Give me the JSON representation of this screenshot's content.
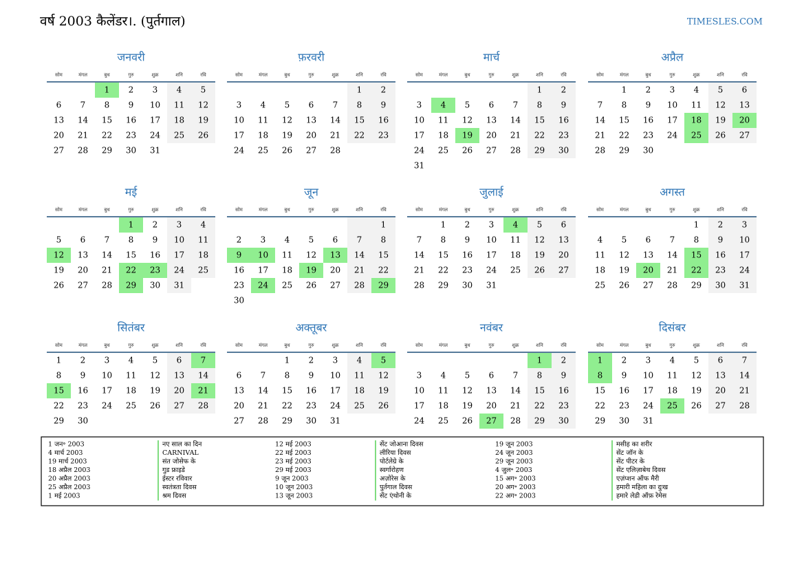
{
  "header": {
    "title": "वर्ष 2003 कैलेंडर।. (पुर्तगाल)",
    "site": "TIMESLES.COM"
  },
  "weekdays": [
    "सोम",
    "मंगल",
    "बुध",
    "गुरु",
    "शुक्र",
    "शनि",
    "रवि"
  ],
  "months": [
    {
      "name": "जनवरी",
      "weeks": [
        [
          null,
          null,
          1,
          2,
          3,
          4,
          5
        ],
        [
          6,
          7,
          8,
          9,
          10,
          11,
          12
        ],
        [
          13,
          14,
          15,
          16,
          17,
          18,
          19
        ],
        [
          20,
          21,
          22,
          23,
          24,
          25,
          26
        ],
        [
          27,
          28,
          29,
          30,
          31
        ]
      ],
      "holidays": [
        1
      ]
    },
    {
      "name": "फ़रवरी",
      "weeks": [
        [
          null,
          null,
          null,
          null,
          null,
          1,
          2
        ],
        [
          3,
          4,
          5,
          6,
          7,
          8,
          9
        ],
        [
          10,
          11,
          12,
          13,
          14,
          15,
          16
        ],
        [
          17,
          18,
          19,
          20,
          21,
          22,
          23
        ],
        [
          24,
          25,
          26,
          27,
          28
        ]
      ],
      "holidays": []
    },
    {
      "name": "मार्च",
      "weeks": [
        [
          null,
          null,
          null,
          null,
          null,
          1,
          2
        ],
        [
          3,
          4,
          5,
          6,
          7,
          8,
          9
        ],
        [
          10,
          11,
          12,
          13,
          14,
          15,
          16
        ],
        [
          17,
          18,
          19,
          20,
          21,
          22,
          23
        ],
        [
          24,
          25,
          26,
          27,
          28,
          29,
          30
        ],
        [
          31
        ]
      ],
      "holidays": [
        4,
        19
      ]
    },
    {
      "name": "अप्रैल",
      "weeks": [
        [
          null,
          1,
          2,
          3,
          4,
          5,
          6
        ],
        [
          7,
          8,
          9,
          10,
          11,
          12,
          13
        ],
        [
          14,
          15,
          16,
          17,
          18,
          19,
          20
        ],
        [
          21,
          22,
          23,
          24,
          25,
          26,
          27
        ],
        [
          28,
          29,
          30
        ]
      ],
      "holidays": [
        18,
        20,
        25
      ]
    },
    {
      "name": "मई",
      "weeks": [
        [
          null,
          null,
          null,
          1,
          2,
          3,
          4
        ],
        [
          5,
          6,
          7,
          8,
          9,
          10,
          11
        ],
        [
          12,
          13,
          14,
          15,
          16,
          17,
          18
        ],
        [
          19,
          20,
          21,
          22,
          23,
          24,
          25
        ],
        [
          26,
          27,
          28,
          29,
          30,
          31
        ]
      ],
      "holidays": [
        1,
        12,
        22,
        23,
        29
      ]
    },
    {
      "name": "जून",
      "weeks": [
        [
          null,
          null,
          null,
          null,
          null,
          null,
          1
        ],
        [
          2,
          3,
          4,
          5,
          6,
          7,
          8
        ],
        [
          9,
          10,
          11,
          12,
          13,
          14,
          15
        ],
        [
          16,
          17,
          18,
          19,
          20,
          21,
          22
        ],
        [
          23,
          24,
          25,
          26,
          27,
          28,
          29
        ],
        [
          30
        ]
      ],
      "holidays": [
        9,
        10,
        13,
        19,
        24,
        29
      ]
    },
    {
      "name": "जुलाई",
      "weeks": [
        [
          null,
          1,
          2,
          3,
          4,
          5,
          6
        ],
        [
          7,
          8,
          9,
          10,
          11,
          12,
          13
        ],
        [
          14,
          15,
          16,
          17,
          18,
          19,
          20
        ],
        [
          21,
          22,
          23,
          24,
          25,
          26,
          27
        ],
        [
          28,
          29,
          30,
          31
        ]
      ],
      "holidays": [
        4
      ]
    },
    {
      "name": "अगस्त",
      "weeks": [
        [
          null,
          null,
          null,
          null,
          1,
          2,
          3
        ],
        [
          4,
          5,
          6,
          7,
          8,
          9,
          10
        ],
        [
          11,
          12,
          13,
          14,
          15,
          16,
          17
        ],
        [
          18,
          19,
          20,
          21,
          22,
          23,
          24
        ],
        [
          25,
          26,
          27,
          28,
          29,
          30,
          31
        ]
      ],
      "holidays": [
        15,
        20,
        22
      ]
    },
    {
      "name": "सितंबर",
      "weeks": [
        [
          1,
          2,
          3,
          4,
          5,
          6,
          7
        ],
        [
          8,
          9,
          10,
          11,
          12,
          13,
          14
        ],
        [
          15,
          16,
          17,
          18,
          19,
          20,
          21
        ],
        [
          22,
          23,
          24,
          25,
          26,
          27,
          28
        ],
        [
          29,
          30
        ]
      ],
      "holidays": [
        7,
        15,
        21
      ]
    },
    {
      "name": "अक्तूबर",
      "weeks": [
        [
          null,
          null,
          1,
          2,
          3,
          4,
          5
        ],
        [
          6,
          7,
          8,
          9,
          10,
          11,
          12
        ],
        [
          13,
          14,
          15,
          16,
          17,
          18,
          19
        ],
        [
          20,
          21,
          22,
          23,
          24,
          25,
          26
        ],
        [
          27,
          28,
          29,
          30,
          31
        ]
      ],
      "holidays": [
        5
      ]
    },
    {
      "name": "नवंबर",
      "weeks": [
        [
          null,
          null,
          null,
          null,
          null,
          1,
          2
        ],
        [
          3,
          4,
          5,
          6,
          7,
          8,
          9
        ],
        [
          10,
          11,
          12,
          13,
          14,
          15,
          16
        ],
        [
          17,
          18,
          19,
          20,
          21,
          22,
          23
        ],
        [
          24,
          25,
          26,
          27,
          28,
          29,
          30
        ]
      ],
      "holidays": [
        1,
        27
      ]
    },
    {
      "name": "दिसंबर",
      "weeks": [
        [
          1,
          2,
          3,
          4,
          5,
          6,
          7
        ],
        [
          8,
          9,
          10,
          11,
          12,
          13,
          14
        ],
        [
          15,
          16,
          17,
          18,
          19,
          20,
          21
        ],
        [
          22,
          23,
          24,
          25,
          26,
          27,
          28
        ],
        [
          29,
          30,
          31
        ]
      ],
      "holidays": [
        1,
        8,
        25
      ]
    }
  ],
  "holiday_list": [
    {
      "date": "1 जन॰ 2003",
      "name": "नए साल का दिन"
    },
    {
      "date": "4 मार्च 2003",
      "name": "CARNIVAL"
    },
    {
      "date": "19 मार्च 2003",
      "name": "संत जोसेफ के"
    },
    {
      "date": "18 अप्रैल 2003",
      "name": "गुड फ्राइडे"
    },
    {
      "date": "20 अप्रैल 2003",
      "name": "ईस्टर रविवार"
    },
    {
      "date": "25 अप्रैल 2003",
      "name": "स्वतंत्रता दिवस"
    },
    {
      "date": "1 मई 2003",
      "name": "श्रम दिवस"
    },
    {
      "date": "12 मई 2003",
      "name": "सेंट जोआना दिवस"
    },
    {
      "date": "22 मई 2003",
      "name": "लीरिया दिवस"
    },
    {
      "date": "23 मई 2003",
      "name": "पोर्टलेग्रे के"
    },
    {
      "date": "29 मई 2003",
      "name": "स्वर्गारोहण"
    },
    {
      "date": "9 जून 2003",
      "name": "अज़ोरेस के"
    },
    {
      "date": "10 जून 2003",
      "name": "पुर्तगाल दिवस"
    },
    {
      "date": "13 जून 2003",
      "name": "सेंट एंथोनी के"
    },
    {
      "date": "19 जून 2003",
      "name": "मसीह का शरीर"
    },
    {
      "date": "24 जून 2003",
      "name": "सेंट जॉन के"
    },
    {
      "date": "29 जून 2003",
      "name": "सेंट पीटर के"
    },
    {
      "date": "4 जुल॰ 2003",
      "name": "सेंट एलिज़ाबेथ दिवस"
    },
    {
      "date": "15 अग॰ 2003",
      "name": "एज़ंप्शन ऑफ मैरी"
    },
    {
      "date": "20 अग॰ 2003",
      "name": "हमारी महिला का दुःख"
    },
    {
      "date": "22 अग॰ 2003",
      "name": "हमारे लेडी ऑफ़ रेमेस"
    }
  ]
}
